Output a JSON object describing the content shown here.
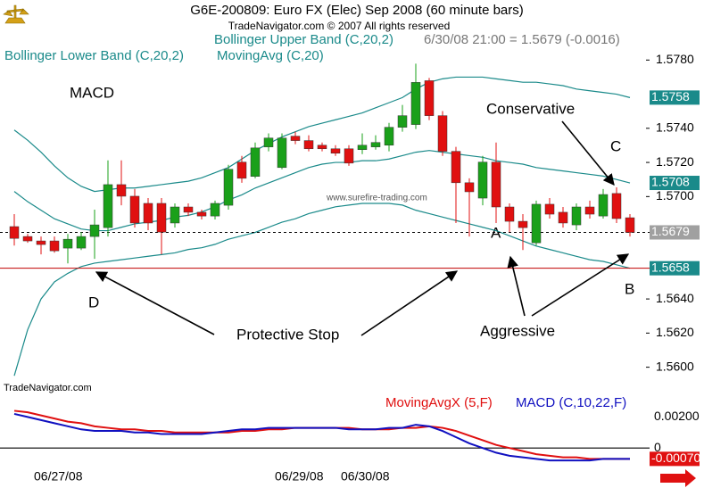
{
  "header": {
    "title": "G6E-200809:  Euro FX (Elec) Sep 2008  (60 minute bars)",
    "copyright": "TradeNavigator.com © 2007 All rights reserved",
    "status": "6/30/08 21:00 = 1.5679 (-0.0016)"
  },
  "annotations": {
    "macd_label": "MACD",
    "conservative": "Conservative",
    "c": "C",
    "a": "A",
    "b": "B",
    "d": "D",
    "protective_stop": "Protective Stop",
    "aggressive": "Aggressive",
    "watermark": "www.surefire-trading.com",
    "source": "TradeNavigator.com"
  },
  "xlabels": [
    "06/27/08",
    "06/29/08",
    "06/30/08"
  ],
  "chart_data": [
    {
      "type": "candlestick",
      "up_color": "#1aa01a",
      "down_color": "#e01010",
      "ylim": [
        1.5593,
        1.5788
      ],
      "yticks": [
        {
          "value": 1.578,
          "label": "1.5780"
        },
        {
          "value": 1.574,
          "label": "1.5740"
        },
        {
          "value": 1.572,
          "label": "1.5720"
        },
        {
          "value": 1.57,
          "label": "1.5700"
        },
        {
          "value": 1.564,
          "label": "1.5640"
        },
        {
          "value": 1.562,
          "label": "1.5620"
        },
        {
          "value": 1.56,
          "label": "1.5600"
        }
      ],
      "open": [
        1.56824,
        1.56766,
        1.5674,
        1.5674,
        1.56698,
        1.56698,
        1.56766,
        1.56818,
        1.5707,
        1.57002,
        1.5696,
        1.5696,
        1.56845,
        1.56939,
        1.56908,
        1.56886,
        1.56949,
        1.57202,
        1.57118,
        1.57291,
        1.5717,
        1.57354,
        1.57328,
        1.57301,
        1.5728,
        1.5728,
        1.57275,
        1.57291,
        1.57301,
        1.57406,
        1.57422,
        1.57679,
        1.57474,
        1.57265,
        1.57081,
        1.56991,
        1.57202,
        1.56939,
        1.56855,
        1.56729,
        1.56955,
        1.56908,
        1.56834,
        1.56939,
        1.56886,
        1.57018,
        1.56876
      ],
      "high": [
        1.56897,
        1.56781,
        1.56766,
        1.56766,
        1.56781,
        1.56792,
        1.56923,
        1.57212,
        1.57212,
        1.57044,
        1.56991,
        1.56991,
        1.5696,
        1.5696,
        1.56923,
        1.56976,
        1.57186,
        1.57238,
        1.57317,
        1.5737,
        1.5737,
        1.5738,
        1.57359,
        1.57317,
        1.57301,
        1.57301,
        1.5737,
        1.57359,
        1.57432,
        1.57537,
        1.57779,
        1.57695,
        1.57501,
        1.57291,
        1.57107,
        1.57238,
        1.57317,
        1.5696,
        1.56897,
        1.56976,
        1.56991,
        1.56939,
        1.5696,
        1.56976,
        1.57044,
        1.57054,
        1.56897
      ],
      "low": [
        1.56713,
        1.56729,
        1.56661,
        1.56671,
        1.56608,
        1.56687,
        1.56635,
        1.56766,
        1.56949,
        1.56818,
        1.56803,
        1.56661,
        1.56818,
        1.56886,
        1.56866,
        1.56866,
        1.56923,
        1.57081,
        1.57107,
        1.57265,
        1.5716,
        1.57307,
        1.57265,
        1.57265,
        1.57238,
        1.5718,
        1.57249,
        1.57275,
        1.57265,
        1.5738,
        1.57396,
        1.57448,
        1.57238,
        1.56845,
        1.56766,
        1.56949,
        1.56845,
        1.56792,
        1.56687,
        1.56713,
        1.56871,
        1.56818,
        1.56803,
        1.56871,
        1.56871,
        1.56845,
        1.56766
      ],
      "close": [
        1.56755,
        1.5674,
        1.56719,
        1.56682,
        1.5675,
        1.56766,
        1.56834,
        1.5707,
        1.57002,
        1.56845,
        1.56845,
        1.56792,
        1.56939,
        1.56908,
        1.56886,
        1.5696,
        1.5716,
        1.57107,
        1.57285,
        1.57343,
        1.57343,
        1.57328,
        1.5728,
        1.5728,
        1.57254,
        1.57196,
        1.57301,
        1.57317,
        1.57406,
        1.57474,
        1.57669,
        1.57474,
        1.57265,
        1.57081,
        1.57028,
        1.57202,
        1.56939,
        1.56855,
        1.56818,
        1.56955,
        1.56897,
        1.56845,
        1.56939,
        1.56897,
        1.57012,
        1.56871,
        1.5679
      ],
      "close_label": "1.5679",
      "series": [
        {
          "name": "Bollinger Upper Band (C,20,2)",
          "color": "#1a8a8a",
          "last_label": "1.5758",
          "values": [
            1.5739,
            1.5733,
            1.5726,
            1.5718,
            1.5711,
            1.5706,
            1.5703,
            1.5704,
            1.5705,
            1.5705,
            1.5706,
            1.5707,
            1.5708,
            1.5709,
            1.5711,
            1.5714,
            1.5717,
            1.5722,
            1.5727,
            1.5731,
            1.5735,
            1.5738,
            1.5741,
            1.5743,
            1.5745,
            1.5747,
            1.5749,
            1.5752,
            1.5755,
            1.5758,
            1.5763,
            1.5767,
            1.5769,
            1.577,
            1.577,
            1.577,
            1.5769,
            1.5768,
            1.5767,
            1.5767,
            1.5766,
            1.5765,
            1.5763,
            1.5762,
            1.5761,
            1.576,
            1.5758
          ]
        },
        {
          "name": "MovingAvg (C,20)",
          "color": "#1a8a8a",
          "last_label": "1.5708",
          "values": [
            1.5703,
            1.5697,
            1.5692,
            1.5687,
            1.5684,
            1.5681,
            1.568,
            1.568,
            1.5682,
            1.5684,
            1.5685,
            1.5686,
            1.5688,
            1.5689,
            1.5691,
            1.5694,
            1.5698,
            1.5701,
            1.5705,
            1.5708,
            1.5711,
            1.5714,
            1.5717,
            1.5719,
            1.572,
            1.572,
            1.5721,
            1.5721,
            1.5722,
            1.5724,
            1.5726,
            1.5727,
            1.5726,
            1.5725,
            1.5724,
            1.5723,
            1.5721,
            1.572,
            1.5719,
            1.5717,
            1.5716,
            1.5715,
            1.5714,
            1.5713,
            1.5712,
            1.571,
            1.5708
          ]
        },
        {
          "name": "Bollinger Lower Band (C,20,2)",
          "color": "#1a8a8a",
          "last_label": "1.5658",
          "values": [
            1.5595,
            1.5622,
            1.564,
            1.565,
            1.5655,
            1.5659,
            1.5661,
            1.5662,
            1.5663,
            1.5664,
            1.5665,
            1.5666,
            1.5667,
            1.5669,
            1.567,
            1.5672,
            1.5675,
            1.5677,
            1.5679,
            1.5682,
            1.5685,
            1.5687,
            1.569,
            1.5692,
            1.5694,
            1.5695,
            1.5696,
            1.5696,
            1.5696,
            1.5695,
            1.5692,
            1.569,
            1.5688,
            1.5686,
            1.5684,
            1.5682,
            1.568,
            1.5677,
            1.5674,
            1.5671,
            1.5669,
            1.5667,
            1.5665,
            1.5663,
            1.5662,
            1.566,
            1.5658
          ]
        }
      ]
    },
    {
      "type": "line",
      "ylim": [
        -0.0016,
        0.003
      ],
      "yticks": [
        {
          "value": 0.002,
          "label": "0.00200"
        },
        0
      ],
      "series": [
        {
          "name": "MovingAvgX (5,F)",
          "color": "#e01010",
          "values": [
            0.0024,
            0.0023,
            0.0021,
            0.0019,
            0.0017,
            0.0016,
            0.0014,
            0.0013,
            0.0012,
            0.0012,
            0.0011,
            0.0011,
            0.001,
            0.001,
            0.001,
            0.001,
            0.001,
            0.0011,
            0.0011,
            0.0012,
            0.0012,
            0.0013,
            0.0013,
            0.0013,
            0.0013,
            0.0013,
            0.0012,
            0.0012,
            0.0012,
            0.0013,
            0.0013,
            0.0014,
            0.0013,
            0.0011,
            0.0008,
            0.0005,
            0.0002,
            0,
            -0.0002,
            -0.0004,
            -0.0005,
            -0.0006,
            -0.0006,
            -0.0007,
            -0.0007,
            -0.0007,
            -0.0007
          ]
        },
        {
          "name": "MACD (C,10,22,F)",
          "color": "#1010c0",
          "last_label": "-0.00070",
          "values": [
            0.0022,
            0.002,
            0.0018,
            0.0016,
            0.0014,
            0.0012,
            0.0011,
            0.0011,
            0.0011,
            0.001,
            0.001,
            0.0009,
            0.0009,
            0.0009,
            0.0009,
            0.001,
            0.0011,
            0.0012,
            0.0012,
            0.0013,
            0.0013,
            0.0013,
            0.0013,
            0.0013,
            0.0013,
            0.0012,
            0.0012,
            0.0012,
            0.0013,
            0.0013,
            0.0015,
            0.0014,
            0.0011,
            0.0007,
            0.0003,
            0,
            -0.0003,
            -0.0005,
            -0.0006,
            -0.0007,
            -0.0008,
            -0.0008,
            -0.0008,
            -0.0008,
            -0.0007,
            -0.0007,
            -0.0007
          ]
        }
      ]
    }
  ]
}
